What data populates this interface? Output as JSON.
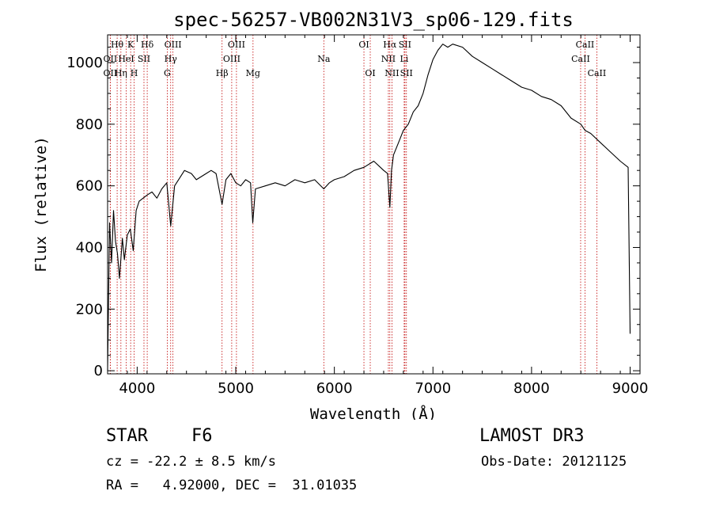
{
  "chart_data": {
    "type": "line",
    "title": "spec-56257-VB002N31V3_sp06-129.fits",
    "xlabel": "Wavelength (Å)",
    "ylabel": "Flux (relative)",
    "xlim": [
      3700,
      9100
    ],
    "ylim": [
      -10,
      1090
    ],
    "xticks": [
      4000,
      5000,
      6000,
      7000,
      8000,
      9000
    ],
    "yticks": [
      0,
      200,
      400,
      600,
      800,
      1000
    ],
    "grid": false,
    "series": [
      {
        "name": "flux",
        "x": [
          3700,
          3720,
          3740,
          3760,
          3780,
          3800,
          3820,
          3850,
          3870,
          3900,
          3930,
          3960,
          3990,
          4020,
          4060,
          4100,
          4150,
          4200,
          4250,
          4300,
          4340,
          4380,
          4420,
          4480,
          4550,
          4600,
          4650,
          4700,
          4750,
          4800,
          4861,
          4900,
          4950,
          5000,
          5050,
          5100,
          5150,
          5172,
          5200,
          5300,
          5400,
          5500,
          5600,
          5700,
          5800,
          5893,
          5950,
          6000,
          6100,
          6200,
          6300,
          6400,
          6500,
          6540,
          6563,
          6580,
          6600,
          6650,
          6700,
          6750,
          6800,
          6850,
          6900,
          6950,
          7000,
          7050,
          7100,
          7150,
          7200,
          7300,
          7400,
          7500,
          7600,
          7700,
          7800,
          7900,
          8000,
          8100,
          8200,
          8300,
          8400,
          8500,
          8542,
          8600,
          8700,
          8800,
          8900,
          8980,
          9000
        ],
        "y": [
          0,
          480,
          350,
          520,
          420,
          380,
          300,
          430,
          360,
          440,
          460,
          390,
          520,
          550,
          560,
          570,
          580,
          560,
          590,
          610,
          470,
          600,
          620,
          650,
          640,
          620,
          630,
          640,
          650,
          640,
          540,
          620,
          640,
          610,
          600,
          620,
          610,
          480,
          590,
          600,
          610,
          600,
          620,
          610,
          620,
          590,
          610,
          620,
          630,
          650,
          660,
          680,
          650,
          640,
          530,
          650,
          700,
          740,
          780,
          800,
          840,
          860,
          900,
          960,
          1010,
          1040,
          1060,
          1050,
          1060,
          1050,
          1020,
          1000,
          980,
          960,
          940,
          920,
          910,
          890,
          880,
          860,
          820,
          800,
          780,
          770,
          740,
          710,
          680,
          660,
          120
        ]
      }
    ],
    "line_marks": [
      {
        "label": "Hθ",
        "x": 3797,
        "row": 0
      },
      {
        "label": "OII",
        "x": 3727,
        "row": 1
      },
      {
        "label": "OII",
        "x": 3727,
        "row": 2
      },
      {
        "label": "HeI",
        "x": 3889,
        "row": 1
      },
      {
        "label": "Hη",
        "x": 3835,
        "row": 2
      },
      {
        "label": "K",
        "x": 3934,
        "row": 0
      },
      {
        "label": "SII",
        "x": 4069,
        "row": 1
      },
      {
        "label": "H",
        "x": 3969,
        "row": 2
      },
      {
        "label": "Hδ",
        "x": 4102,
        "row": 0
      },
      {
        "label": "OIII",
        "x": 4363,
        "row": 0
      },
      {
        "label": "Hγ",
        "x": 4340,
        "row": 1
      },
      {
        "label": "G",
        "x": 4305,
        "row": 2
      },
      {
        "label": "Hβ",
        "x": 4861,
        "row": 2
      },
      {
        "label": "OIII",
        "x": 5007,
        "row": 0
      },
      {
        "label": "OIII",
        "x": 4959,
        "row": 1
      },
      {
        "label": "Mg",
        "x": 5175,
        "row": 2
      },
      {
        "label": "Na",
        "x": 5893,
        "row": 1
      },
      {
        "label": "OI",
        "x": 6300,
        "row": 0
      },
      {
        "label": "OI",
        "x": 6364,
        "row": 2
      },
      {
        "label": "Hα",
        "x": 6563,
        "row": 0
      },
      {
        "label": "NII",
        "x": 6548,
        "row": 1
      },
      {
        "label": "NII",
        "x": 6584,
        "row": 2
      },
      {
        "label": "SII",
        "x": 6716,
        "row": 0
      },
      {
        "label": "Li",
        "x": 6708,
        "row": 1
      },
      {
        "label": "SII",
        "x": 6731,
        "row": 2
      },
      {
        "label": "CaII",
        "x": 8542,
        "row": 0
      },
      {
        "label": "CaII",
        "x": 8498,
        "row": 1
      },
      {
        "label": "CaII",
        "x": 8662,
        "row": 2
      }
    ]
  },
  "info": {
    "object_class": "STAR",
    "subclass": "F6",
    "survey": "LAMOST DR3",
    "redshift": "cz = -22.2 ± 8.5 km/s",
    "obs_date": "Obs-Date: 20121125",
    "coords": "RA =   4.92000, DEC =  31.01035"
  }
}
